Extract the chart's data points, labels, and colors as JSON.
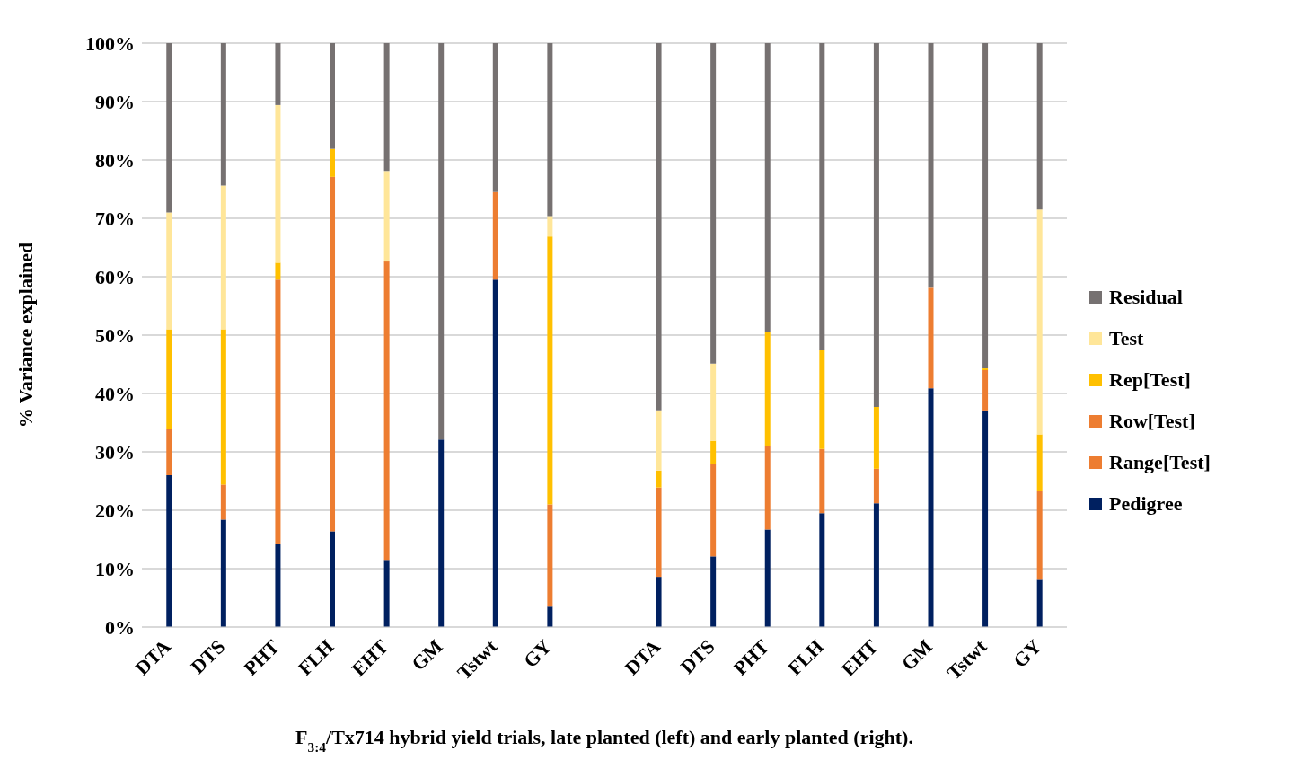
{
  "chart_data": {
    "type": "bar",
    "stacked": true,
    "ylabel": "% Variance explained",
    "xlabel": "F$_{3:4}$/Tx714 hybrid yield trials, late planted (left) and early planted (right).",
    "categories": [
      "DTA",
      "DTS",
      "PHT",
      "FLH",
      "EHT",
      "GM",
      "Tstwt",
      "GY",
      null,
      "DTA",
      "DTS",
      "PHT",
      "FLH",
      "EHT",
      "GM",
      "Tstwt",
      "GY"
    ],
    "series": [
      {
        "name": "Pedigree",
        "color": "#002060",
        "values": [
          26,
          18.4,
          14.3,
          16.4,
          11.5,
          32.1,
          59.5,
          3.5,
          null,
          8.6,
          12.1,
          16.7,
          19.5,
          21.2,
          40.9,
          37.1,
          8.1
        ]
      },
      {
        "name": "Range[Test]",
        "color": "#ed7d31",
        "values": [
          8,
          6,
          45.2,
          60.7,
          51.1,
          0,
          15,
          17.5,
          null,
          15.3,
          15.8,
          14.3,
          11,
          5.9,
          17.2,
          6.9,
          15.2
        ]
      },
      {
        "name": "Row[Test]",
        "color": "#ed7d31",
        "values": [
          0,
          0,
          0,
          0,
          0,
          0,
          0,
          0,
          null,
          0,
          0,
          0,
          0,
          0,
          0,
          0,
          0
        ]
      },
      {
        "name": "Rep[Test]",
        "color": "#ffc000",
        "values": [
          17,
          26.6,
          2.9,
          4.8,
          0,
          0,
          0,
          45.9,
          null,
          2.9,
          4,
          19.6,
          16.9,
          10.6,
          0,
          0.3,
          9.7
        ]
      },
      {
        "name": "Test",
        "color": "#ffe699",
        "values": [
          20,
          24.6,
          27,
          0,
          15.5,
          0,
          0,
          3.5,
          null,
          10.3,
          13.2,
          0,
          0,
          0,
          0,
          0,
          38.5
        ]
      },
      {
        "name": "Residual",
        "color": "#767171",
        "values": [
          29,
          24.4,
          10.6,
          18.1,
          21.9,
          67.9,
          25.5,
          29.6,
          null,
          62.9,
          54.9,
          49.4,
          52.6,
          62.3,
          41.9,
          55.7,
          28.5
        ]
      }
    ],
    "ylim": [
      0,
      100
    ],
    "yticks": [
      {
        "value": 0,
        "label": "0%"
      },
      {
        "value": 10,
        "label": "10%"
      },
      {
        "value": 20,
        "label": "20%"
      },
      {
        "value": 30,
        "label": "30%"
      },
      {
        "value": 40,
        "label": "40%"
      },
      {
        "value": 50,
        "label": "50%"
      },
      {
        "value": 60,
        "label": "60%"
      },
      {
        "value": 70,
        "label": "70%"
      },
      {
        "value": 80,
        "label": "80%"
      },
      {
        "value": 90,
        "label": "90%"
      },
      {
        "value": 100,
        "label": "100%"
      }
    ],
    "grid": "y",
    "legend": "right"
  }
}
